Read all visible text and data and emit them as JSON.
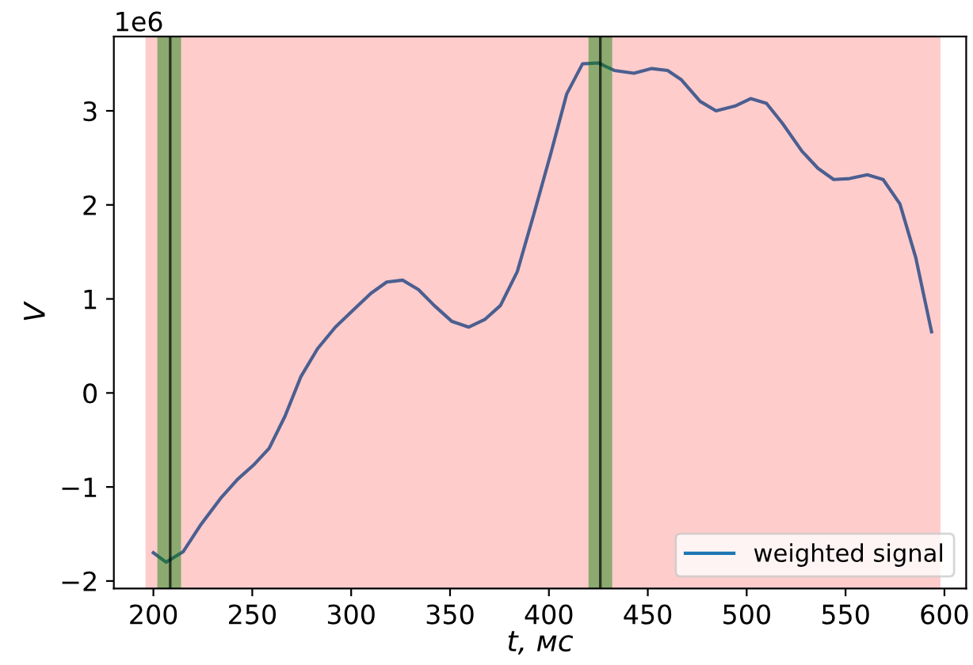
{
  "chart_data": {
    "type": "line",
    "xlabel": "t, мс",
    "ylabel": "V",
    "annotations": [
      "1e6"
    ],
    "x": [
      200,
      206.4,
      215,
      224,
      234,
      242.5,
      250.5,
      258.5,
      266.5,
      274.5,
      283,
      292,
      301,
      310,
      318,
      326,
      334,
      342,
      351,
      359.5,
      367.5,
      375.5,
      384,
      392.5,
      401,
      409,
      417,
      425,
      433,
      443,
      452,
      460,
      467,
      476.5,
      484.5,
      494,
      502,
      510,
      518,
      528,
      536,
      544,
      552,
      561,
      569,
      577.5,
      585.5,
      593.5
    ],
    "series": [
      {
        "name": "weighted signal",
        "color": "#1f77b4",
        "values": [
          -1.7,
          -1.8,
          -1.69,
          -1.4,
          -1.12,
          -0.92,
          -0.77,
          -0.59,
          -0.25,
          0.17,
          0.47,
          0.7,
          0.88,
          1.06,
          1.18,
          1.2,
          1.1,
          0.93,
          0.76,
          0.7,
          0.78,
          0.93,
          1.29,
          1.91,
          2.55,
          3.18,
          3.5,
          3.51,
          3.43,
          3.4,
          3.45,
          3.43,
          3.33,
          3.1,
          3.0,
          3.05,
          3.13,
          3.08,
          2.87,
          2.57,
          2.39,
          2.27,
          2.28,
          2.32,
          2.27,
          2.01,
          1.44,
          0.65
        ]
      }
    ],
    "xlim": [
      180,
      611
    ],
    "ylim": [
      -2.08,
      3.79
    ],
    "xticks": [
      200,
      250,
      300,
      350,
      400,
      450,
      500,
      550,
      600
    ],
    "yticks": [
      {
        "value": -2,
        "label": "−2"
      },
      {
        "value": -1,
        "label": "−1"
      },
      0,
      1,
      2,
      3
    ],
    "bands": [
      {
        "axis": "x",
        "from": 196,
        "to": 598,
        "color": "#ff0000"
      },
      {
        "axis": "x",
        "from": 202,
        "to": 214,
        "color": "#008000"
      },
      {
        "axis": "x",
        "from": 420,
        "to": 432,
        "color": "#008000"
      }
    ],
    "ref_lines": [
      {
        "axis": "x",
        "value": 208.5,
        "color": "#000000"
      },
      {
        "axis": "x",
        "value": 426,
        "color": "#000000"
      }
    ],
    "grid": false,
    "legend": "bottom right",
    "marker": "none",
    "line_style": "solid"
  }
}
